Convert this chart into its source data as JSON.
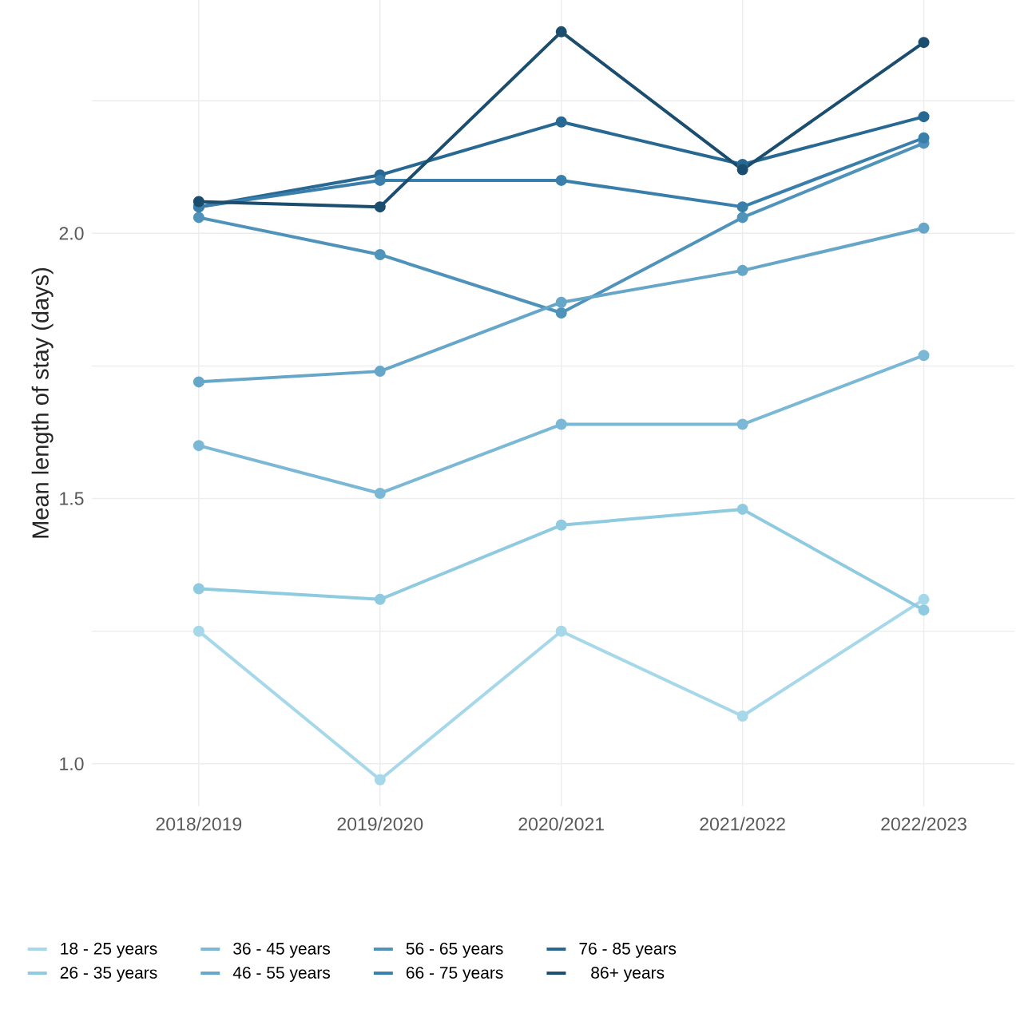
{
  "chart_data": {
    "type": "line",
    "ylabel": "Mean length of stay (days)",
    "categories": [
      "2018/2019",
      "2019/2020",
      "2020/2021",
      "2021/2022",
      "2022/2023"
    ],
    "series": [
      {
        "name": "18 - 25 years",
        "color": "#a6d8ea",
        "values": [
          1.25,
          0.97,
          1.25,
          1.09,
          1.31
        ]
      },
      {
        "name": "26 - 35 years",
        "color": "#8ecae0",
        "values": [
          1.33,
          1.31,
          1.45,
          1.48,
          1.29
        ]
      },
      {
        "name": "36 - 45 years",
        "color": "#7ab8d6",
        "values": [
          1.6,
          1.51,
          1.64,
          1.64,
          1.77
        ]
      },
      {
        "name": "46 - 55 years",
        "color": "#66a6c8",
        "values": [
          1.72,
          1.74,
          1.87,
          1.93,
          2.01
        ]
      },
      {
        "name": "56 - 65 years",
        "color": "#4f93bb",
        "values": [
          2.03,
          1.96,
          1.85,
          2.03,
          2.17
        ]
      },
      {
        "name": "66 - 75 years",
        "color": "#3a7fab",
        "values": [
          2.05,
          2.1,
          2.1,
          2.05,
          2.18
        ]
      },
      {
        "name": "76 - 85 years",
        "color": "#286993",
        "values": [
          2.05,
          2.11,
          2.21,
          2.13,
          2.22
        ]
      },
      {
        "name": "86+ years",
        "color": "#1a4d6e",
        "values": [
          2.06,
          2.05,
          2.38,
          2.12,
          2.36
        ]
      }
    ],
    "ylim": [
      0.92,
      2.44
    ],
    "yticks": [
      {
        "value": 1,
        "label": "1.0"
      },
      {
        "value": 1.25,
        "label": null
      },
      {
        "value": 1.5,
        "label": "1.5"
      },
      {
        "value": 1.75,
        "label": null
      },
      {
        "value": 2,
        "label": "2.0"
      },
      {
        "value": 2.25,
        "label": null
      }
    ],
    "grid": true,
    "legend": "bottom",
    "marker": "circle",
    "line_style": "solid"
  }
}
